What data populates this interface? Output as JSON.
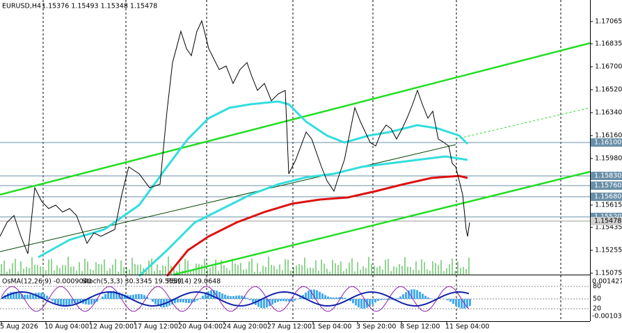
{
  "header": {
    "symbol": "EURUSD,H4",
    "ohlc": "1.15376 1.15493 1.15348 1.15478"
  },
  "price_axis": [
    "1.17065",
    "1.16835",
    "1.16700",
    "1.16520",
    "1.16340",
    "1.16160",
    "1.15980",
    "1.15615",
    "1.15435",
    "1.15255",
    "1.15075"
  ],
  "price_markers": [
    "1.16100",
    "1.15830",
    "1.15760",
    "1.15680",
    "1.15520",
    "1.15478"
  ],
  "indicator": {
    "osma": "OsMA(12,26,9) -0.0009040",
    "stoch": "Stoch(5,3,3) 30.3345 19.5559",
    "rsi": "RSI(14) 29.0648",
    "axis": [
      "0.0014273",
      "80",
      "50",
      "20",
      "-0.001032"
    ]
  },
  "time_axis": [
    "5 Aug 2026",
    "10 Aug 04:00",
    "12 Aug 20:00",
    "17 Aug 12:00",
    "20 Aug 04:00",
    "24 Aug 20:00",
    "27 Aug 12:00",
    "1 Sep 04:00",
    "3 Sep 20:00",
    "8 Sep 12:00",
    "11 Sep 04:00"
  ]
}
